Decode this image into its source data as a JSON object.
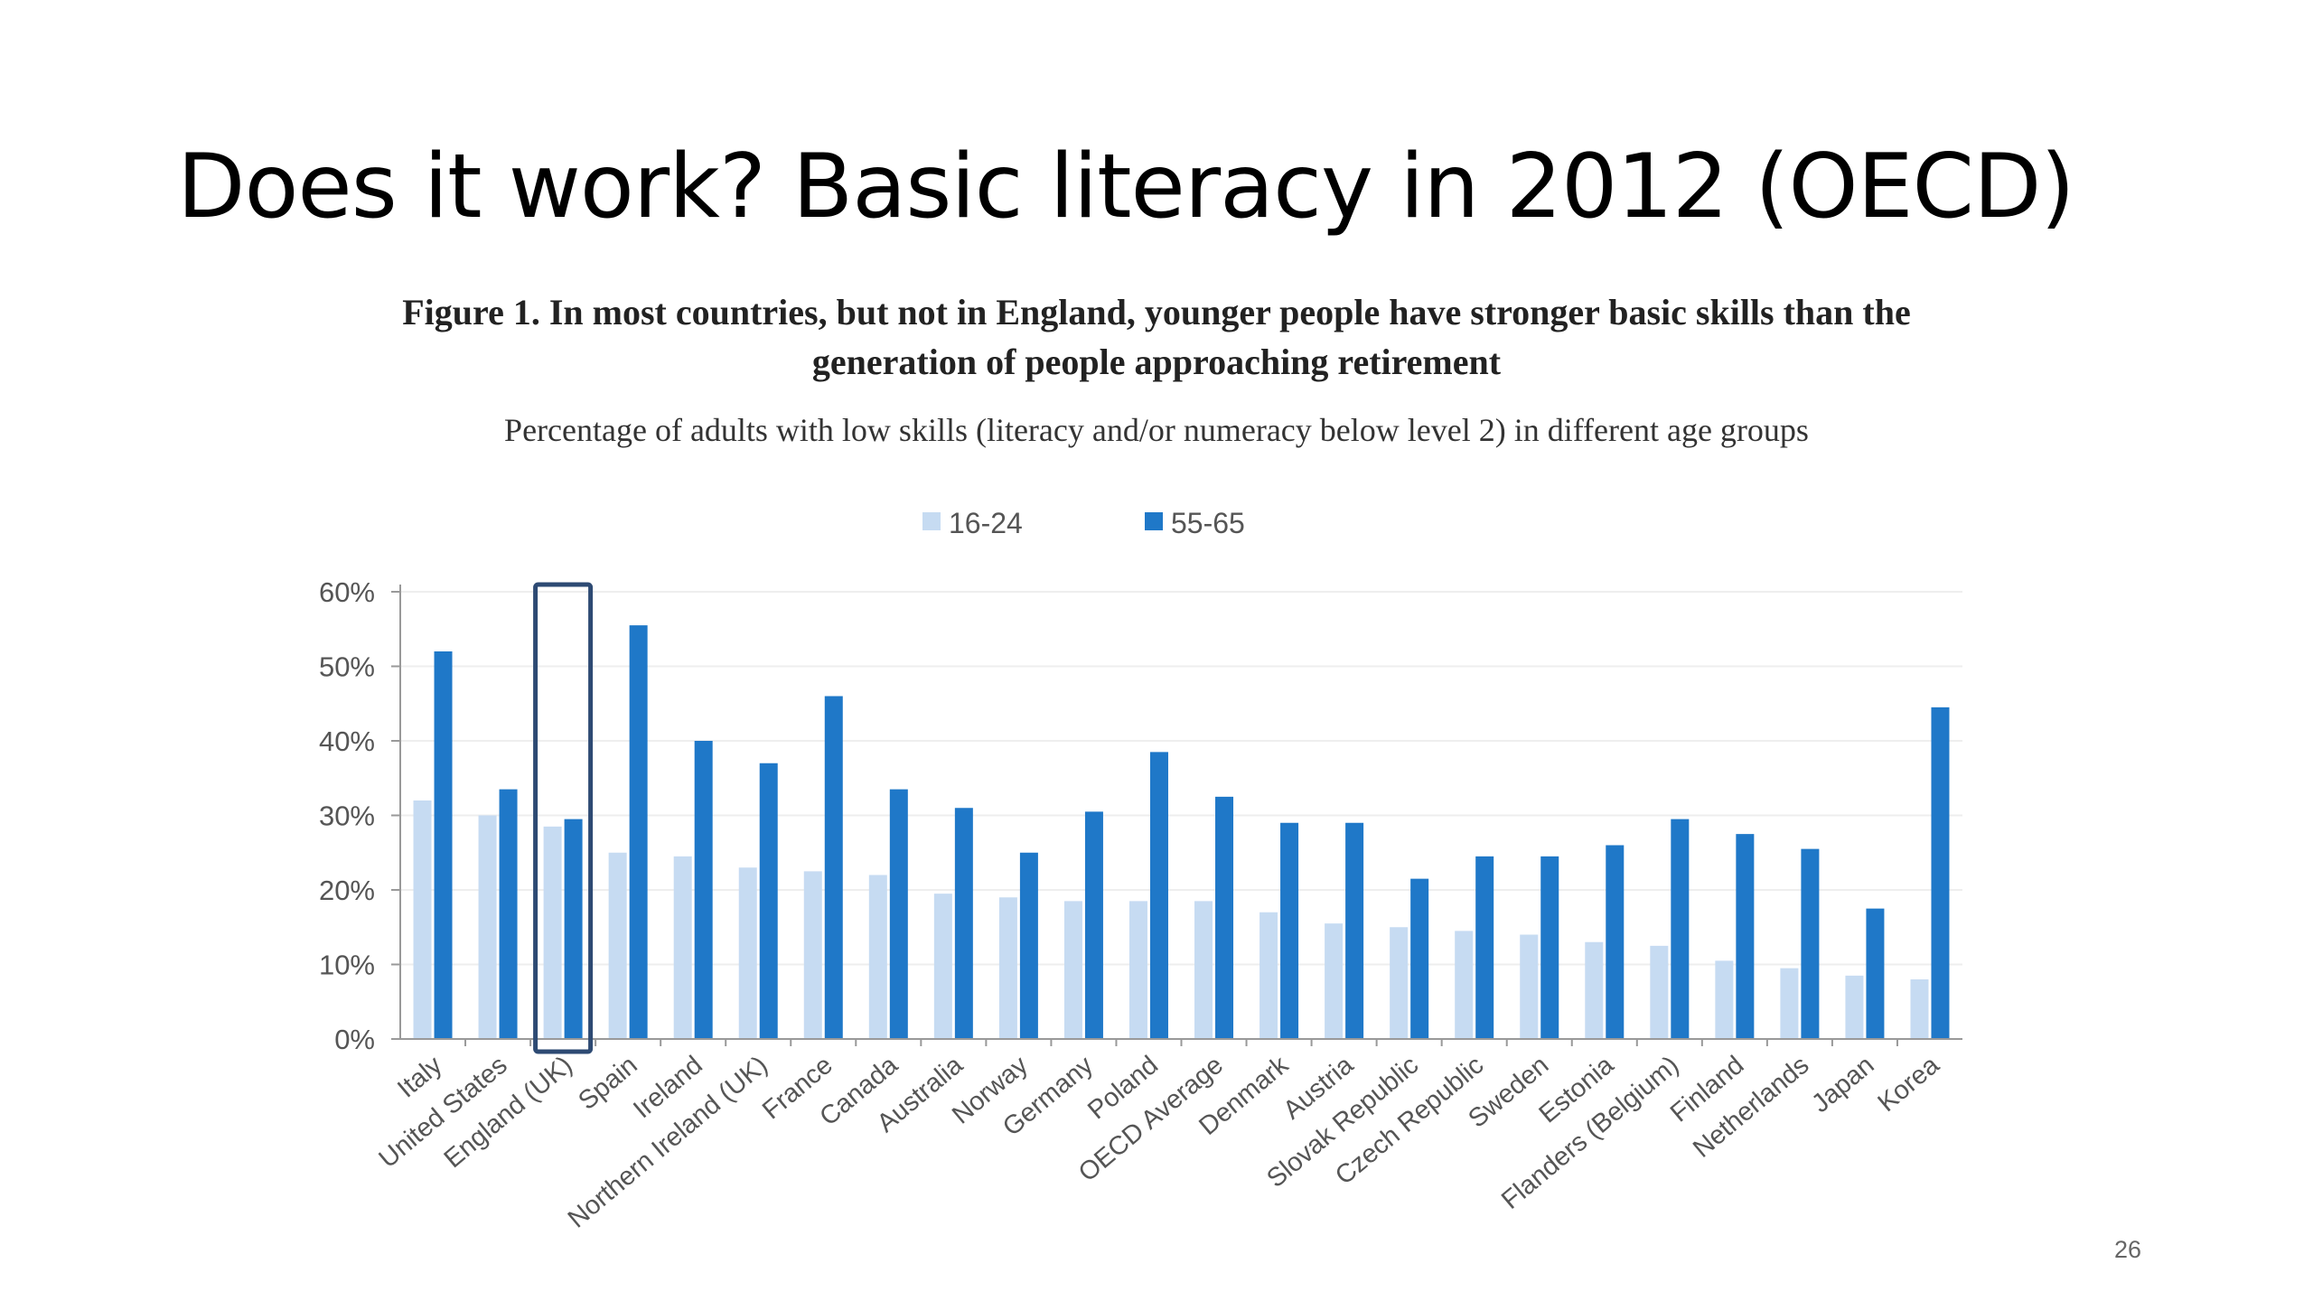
{
  "slide": {
    "title": "Does it work? Basic literacy in 2012 (OECD)",
    "page_number": "26"
  },
  "figure": {
    "caption_line1": "Figure 1. In most countries, but not in England, younger people have stronger basic skills than the",
    "caption_line2": "generation of people approaching retirement",
    "subtitle": "Percentage of adults with low skills (literacy and/or numeracy below level 2) in different age groups"
  },
  "chart_data": {
    "type": "bar",
    "categories": [
      "Italy",
      "United States",
      "England (UK)",
      "Spain",
      "Ireland",
      "Northern Ireland (UK)",
      "France",
      "Canada",
      "Australia",
      "Norway",
      "Germany",
      "Poland",
      "OECD Average",
      "Denmark",
      "Austria",
      "Slovak Republic",
      "Czech Republic",
      "Sweden",
      "Estonia",
      "Flanders (Belgium)",
      "Finland",
      "Netherlands",
      "Japan",
      "Korea"
    ],
    "series": [
      {
        "name": "16-24",
        "color": "#c6dbf2",
        "values": [
          32,
          30,
          28.5,
          25,
          24.5,
          23,
          22.5,
          22,
          19.5,
          19,
          18.5,
          18.5,
          18.5,
          17,
          15.5,
          15,
          14.5,
          14,
          13,
          12.5,
          10.5,
          9.5,
          8.5,
          8
        ]
      },
      {
        "name": "55-65",
        "color": "#1f78c8",
        "values": [
          52,
          33.5,
          29.5,
          55.5,
          40,
          37,
          46,
          33.5,
          31,
          25,
          30.5,
          38.5,
          32.5,
          29,
          29,
          21.5,
          24.5,
          24.5,
          26,
          29.5,
          27.5,
          25.5,
          17.5,
          44.5
        ]
      }
    ],
    "y_ticks": [
      "0%",
      "10%",
      "20%",
      "30%",
      "40%",
      "50%",
      "60%"
    ],
    "ylim": [
      0,
      60
    ],
    "grid": true,
    "legend_position": "top-center",
    "highlighted_category": "England (UK)"
  }
}
